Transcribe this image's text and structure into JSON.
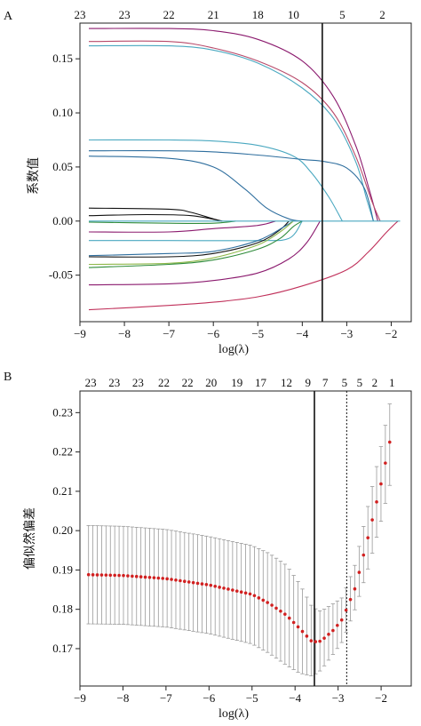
{
  "chart_data": [
    {
      "panel_label": "A",
      "type": "line",
      "xlabel": "log(λ)",
      "ylabel": "系数值",
      "xlim": [
        -9,
        -1.55
      ],
      "ylim": [
        -0.093,
        0.183
      ],
      "xticks": [
        -9,
        -8,
        -7,
        -6,
        -5,
        -4,
        -3,
        -2
      ],
      "yticks": [
        -0.05,
        0.0,
        0.05,
        0.1,
        0.15
      ],
      "ytick_labels": [
        "-0.05",
        "0.00",
        "0.05",
        "0.10",
        "0.15"
      ],
      "top_axis": {
        "ticks": [
          -9,
          -8,
          -7,
          -6,
          -5,
          -4.2,
          -3.1,
          -2.2
        ],
        "labels": [
          "23",
          "23",
          "22",
          "21",
          "18",
          "10",
          "5",
          "2"
        ]
      },
      "vline_x": -3.55,
      "series": [
        {
          "color": "#8b1a6e",
          "values": [
            [
              -8.8,
              0.178
            ],
            [
              -7,
              0.178
            ],
            [
              -6,
              0.176
            ],
            [
              -5,
              0.168
            ],
            [
              -4,
              0.148
            ],
            [
              -3.3,
              0.115
            ],
            [
              -2.8,
              0.07
            ],
            [
              -2.5,
              0.03
            ],
            [
              -2.3,
              0.0
            ]
          ]
        },
        {
          "color": "#b84a6a",
          "values": [
            [
              -8.8,
              0.166
            ],
            [
              -7,
              0.166
            ],
            [
              -6,
              0.16
            ],
            [
              -5,
              0.148
            ],
            [
              -4,
              0.128
            ],
            [
              -3.3,
              0.1
            ],
            [
              -2.8,
              0.06
            ],
            [
              -2.45,
              0.02
            ],
            [
              -2.25,
              0.0
            ]
          ]
        },
        {
          "color": "#4aa8c0",
          "values": [
            [
              -8.8,
              0.162
            ],
            [
              -7,
              0.162
            ],
            [
              -6,
              0.158
            ],
            [
              -5,
              0.146
            ],
            [
              -4,
              0.123
            ],
            [
              -3.3,
              0.095
            ],
            [
              -2.8,
              0.055
            ],
            [
              -2.55,
              0.02
            ],
            [
              -2.4,
              0.0
            ]
          ]
        },
        {
          "color": "#4aa8c0",
          "values": [
            [
              -8.8,
              0.075
            ],
            [
              -7,
              0.075
            ],
            [
              -6,
              0.074
            ],
            [
              -5,
              0.07
            ],
            [
              -4.2,
              0.06
            ],
            [
              -3.8,
              0.045
            ],
            [
              -3.4,
              0.022
            ],
            [
              -3.1,
              0.0
            ]
          ]
        },
        {
          "color": "#2e6e9e",
          "values": [
            [
              -8.8,
              0.065
            ],
            [
              -7,
              0.065
            ],
            [
              -6,
              0.064
            ],
            [
              -5,
              0.061
            ],
            [
              -4,
              0.057
            ],
            [
              -3.5,
              0.055
            ],
            [
              -3,
              0.049
            ],
            [
              -2.6,
              0.03
            ],
            [
              -2.4,
              0.0
            ]
          ]
        },
        {
          "color": "#2e6e9e",
          "values": [
            [
              -8.8,
              0.06
            ],
            [
              -7,
              0.058
            ],
            [
              -6,
              0.05
            ],
            [
              -5.3,
              0.03
            ],
            [
              -4.8,
              0.012
            ],
            [
              -4.3,
              0.002
            ],
            [
              -4.0,
              0.0
            ]
          ]
        },
        {
          "color": "#111111",
          "values": [
            [
              -8.8,
              0.012
            ],
            [
              -7,
              0.011
            ],
            [
              -6.5,
              0.008
            ],
            [
              -6.0,
              0.002
            ],
            [
              -5.8,
              0.0
            ]
          ]
        },
        {
          "color": "#111111",
          "values": [
            [
              -8.8,
              0.005
            ],
            [
              -7.5,
              0.006
            ],
            [
              -6.5,
              0.005
            ],
            [
              -5.8,
              0.0
            ]
          ]
        },
        {
          "color": "#2e8b3a",
          "values": [
            [
              -8.8,
              -0.001
            ],
            [
              -7,
              -0.002
            ],
            [
              -6,
              -0.002
            ],
            [
              -5.5,
              0.0
            ]
          ]
        },
        {
          "color": "#8b1a6e",
          "values": [
            [
              -8.8,
              -0.01
            ],
            [
              -7,
              -0.01
            ],
            [
              -6,
              -0.007
            ],
            [
              -5,
              -0.004
            ],
            [
              -4.6,
              0.0
            ]
          ]
        },
        {
          "color": "#4aa8c0",
          "values": [
            [
              -8.8,
              -0.018
            ],
            [
              -7,
              -0.018
            ],
            [
              -5,
              -0.018
            ],
            [
              -4.3,
              -0.016
            ],
            [
              -4.0,
              0.0
            ]
          ]
        },
        {
          "color": "#111111",
          "values": [
            [
              -8.8,
              -0.033
            ],
            [
              -7,
              -0.033
            ],
            [
              -6,
              -0.03
            ],
            [
              -5,
              -0.02
            ],
            [
              -4.5,
              -0.008
            ],
            [
              -4.3,
              0.0
            ]
          ]
        },
        {
          "color": "#2e6e9e",
          "values": [
            [
              -8.8,
              -0.032
            ],
            [
              -7,
              -0.03
            ],
            [
              -6,
              -0.028
            ],
            [
              -5,
              -0.018
            ],
            [
              -4.4,
              -0.005
            ],
            [
              -4.2,
              0.0
            ]
          ]
        },
        {
          "color": "#8fb84a",
          "values": [
            [
              -8.8,
              -0.04
            ],
            [
              -7,
              -0.039
            ],
            [
              -6,
              -0.034
            ],
            [
              -5,
              -0.022
            ],
            [
              -4.5,
              -0.01
            ],
            [
              -4.2,
              0.0
            ]
          ]
        },
        {
          "color": "#2e8b3a",
          "values": [
            [
              -8.8,
              -0.043
            ],
            [
              -7,
              -0.04
            ],
            [
              -6,
              -0.036
            ],
            [
              -5,
              -0.026
            ],
            [
              -4.5,
              -0.016
            ],
            [
              -4.2,
              -0.005
            ],
            [
              -4.0,
              0.0
            ]
          ]
        },
        {
          "color": "#8b1a6e",
          "values": [
            [
              -8.8,
              -0.059
            ],
            [
              -7,
              -0.058
            ],
            [
              -6,
              -0.055
            ],
            [
              -5,
              -0.048
            ],
            [
              -4.3,
              -0.035
            ],
            [
              -3.9,
              -0.02
            ],
            [
              -3.6,
              0.0
            ]
          ]
        },
        {
          "color": "#c0305a",
          "values": [
            [
              -8.8,
              -0.082
            ],
            [
              -7,
              -0.078
            ],
            [
              -6,
              -0.075
            ],
            [
              -5,
              -0.07
            ],
            [
              -4,
              -0.06
            ],
            [
              -3,
              -0.045
            ],
            [
              -2.5,
              -0.028
            ],
            [
              -2.1,
              -0.01
            ],
            [
              -1.85,
              0.0
            ]
          ]
        },
        {
          "color": "#4aa8c0",
          "values": [
            [
              -8.8,
              0.0
            ],
            [
              -1.8,
              0.0
            ]
          ]
        }
      ]
    },
    {
      "panel_label": "B",
      "type": "scatter",
      "xlabel": "log(λ)",
      "ylabel": "偏似然偏差",
      "xlim": [
        -9,
        -1.3
      ],
      "ylim": [
        0.1605,
        0.2355
      ],
      "xticks": [
        -9,
        -8,
        -7,
        -6,
        -5,
        -4,
        -3,
        -2
      ],
      "yticks": [
        0.17,
        0.18,
        0.19,
        0.2,
        0.21,
        0.22,
        0.23
      ],
      "ytick_labels": [
        "0.17",
        "0.18",
        "0.19",
        "0.20",
        "0.21",
        "0.22",
        "0.23"
      ],
      "top_axis": {
        "ticks": [
          -8.75,
          -8.2,
          -7.65,
          -7.05,
          -6.5,
          -5.95,
          -5.35,
          -4.8,
          -4.2,
          -3.7,
          -3.3,
          -2.85,
          -2.5,
          -2.15,
          -1.75
        ],
        "labels": [
          "23",
          "23",
          "23",
          "22",
          "22",
          "20",
          "19",
          "17",
          "12",
          "9",
          "7",
          "5",
          "5",
          "2",
          "1"
        ]
      },
      "vline_solid_x": -3.55,
      "vline_dashed_x": -2.8,
      "mean_curve": [
        [
          -8.8,
          0.1888
        ],
        [
          -8,
          0.1886
        ],
        [
          -7,
          0.1878
        ],
        [
          -6,
          0.1862
        ],
        [
          -5,
          0.1838
        ],
        [
          -4.6,
          0.1815
        ],
        [
          -4.2,
          0.1785
        ],
        [
          -3.9,
          0.1752
        ],
        [
          -3.6,
          0.1717
        ],
        [
          -3.4,
          0.1719
        ],
        [
          -3.1,
          0.1748
        ],
        [
          -2.9,
          0.1775
        ],
        [
          -2.6,
          0.1855
        ],
        [
          -2.3,
          0.1985
        ],
        [
          -2,
          0.212
        ],
        [
          -1.8,
          0.2225
        ]
      ],
      "error_lower_curve": [
        [
          -8.8,
          0.1763
        ],
        [
          -8,
          0.1762
        ],
        [
          -7,
          0.1755
        ],
        [
          -6,
          0.1738
        ],
        [
          -5,
          0.1712
        ],
        [
          -4.6,
          0.1688
        ],
        [
          -4.2,
          0.1658
        ],
        [
          -3.9,
          0.1638
        ],
        [
          -3.6,
          0.163
        ],
        [
          -3.4,
          0.1645
        ],
        [
          -3.1,
          0.1688
        ],
        [
          -2.9,
          0.1718
        ],
        [
          -2.6,
          0.1802
        ],
        [
          -2.3,
          0.1905
        ],
        [
          -2,
          0.2025
        ],
        [
          -1.8,
          0.2115
        ]
      ],
      "error_upper_curve": [
        [
          -8.8,
          0.2013
        ],
        [
          -8,
          0.2011
        ],
        [
          -7,
          0.2003
        ],
        [
          -6,
          0.1985
        ],
        [
          -5,
          0.1962
        ],
        [
          -4.6,
          0.1942
        ],
        [
          -4.2,
          0.1912
        ],
        [
          -3.9,
          0.1866
        ],
        [
          -3.6,
          0.1805
        ],
        [
          -3.4,
          0.1795
        ],
        [
          -3.1,
          0.1815
        ],
        [
          -2.9,
          0.183
        ],
        [
          -2.6,
          0.1915
        ],
        [
          -2.3,
          0.2065
        ],
        [
          -2,
          0.2215
        ],
        [
          -1.8,
          0.2322
        ]
      ],
      "n_points": 70,
      "x_range": [
        -8.8,
        -1.8
      ],
      "point_color": "#d12020",
      "errorbar_color": "#9a9a9a"
    }
  ]
}
